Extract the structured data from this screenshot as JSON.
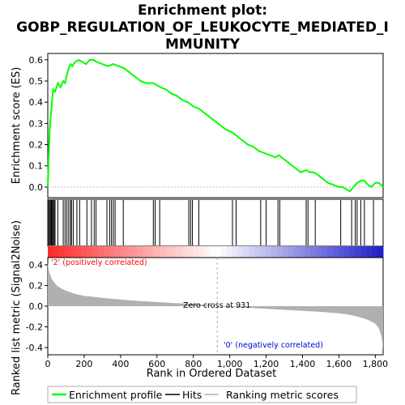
{
  "title_lines": [
    "Enrichment plot:",
    "GOBP_REGULATION_OF_LEUKOCYTE_MEDIATED_I",
    "MMUNITY"
  ],
  "colors": {
    "es_line": "#00ff00",
    "hits": "#000000",
    "metric_fill": "#b0b0b0",
    "pos_label": "#ff0000",
    "neg_label": "#0000cc"
  },
  "chart_data": [
    {
      "type": "line",
      "name": "enrichment-score",
      "ylabel": "Enrichment score (ES)",
      "ylim": [
        -0.05,
        0.63
      ],
      "yticks": [
        0.0,
        0.1,
        0.2,
        0.3,
        0.4,
        0.5,
        0.6
      ],
      "xlim": [
        0,
        1843
      ],
      "grid": false,
      "series": [
        {
          "name": "Enrichment profile",
          "x": [
            0,
            5,
            10,
            15,
            20,
            25,
            30,
            40,
            55,
            70,
            85,
            95,
            105,
            115,
            125,
            135,
            150,
            170,
            190,
            210,
            230,
            250,
            270,
            300,
            330,
            360,
            390,
            420,
            450,
            480,
            510,
            540,
            580,
            600,
            620,
            650,
            680,
            710,
            740,
            770,
            800,
            830,
            860,
            890,
            920,
            950,
            980,
            1010,
            1040,
            1070,
            1100,
            1130,
            1160,
            1190,
            1220,
            1250,
            1270,
            1300,
            1330,
            1360,
            1390,
            1420,
            1440,
            1460,
            1480,
            1510,
            1540,
            1570,
            1600,
            1620,
            1640,
            1660,
            1680,
            1700,
            1720,
            1740,
            1760,
            1780,
            1800,
            1820,
            1843
          ],
          "y": [
            0.0,
            0.14,
            0.26,
            0.32,
            0.37,
            0.42,
            0.46,
            0.45,
            0.49,
            0.47,
            0.5,
            0.49,
            0.53,
            0.56,
            0.58,
            0.57,
            0.59,
            0.6,
            0.59,
            0.58,
            0.6,
            0.6,
            0.59,
            0.58,
            0.57,
            0.58,
            0.57,
            0.56,
            0.54,
            0.52,
            0.5,
            0.49,
            0.49,
            0.48,
            0.47,
            0.46,
            0.44,
            0.43,
            0.41,
            0.4,
            0.38,
            0.37,
            0.35,
            0.33,
            0.31,
            0.29,
            0.27,
            0.26,
            0.24,
            0.22,
            0.2,
            0.19,
            0.17,
            0.16,
            0.15,
            0.14,
            0.15,
            0.13,
            0.11,
            0.09,
            0.07,
            0.08,
            0.07,
            0.07,
            0.06,
            0.04,
            0.02,
            0.01,
            0.0,
            0.0,
            -0.01,
            -0.02,
            0.0,
            0.02,
            0.03,
            0.03,
            0.01,
            0.0,
            0.02,
            0.02,
            0.0
          ]
        }
      ]
    },
    {
      "type": "scatter",
      "name": "hits",
      "xlim": [
        0,
        1843
      ],
      "series": [
        {
          "name": "Hits",
          "x": [
            5,
            10,
            15,
            20,
            25,
            30,
            35,
            40,
            55,
            85,
            95,
            105,
            115,
            125,
            130,
            140,
            160,
            175,
            215,
            240,
            255,
            265,
            325,
            340,
            350,
            360,
            370,
            415,
            580,
            590,
            615,
            775,
            785,
            795,
            830,
            1015,
            1035,
            1170,
            1200,
            1265,
            1275,
            1420,
            1430,
            1470,
            1610,
            1670,
            1690,
            1700,
            1720,
            1740,
            1790
          ]
        }
      ]
    },
    {
      "type": "area",
      "name": "ranked-metric",
      "ylabel": "Ranked list metric (Signal2Noise)",
      "xlabel": "Rank in Ordered Dataset",
      "ylim": [
        -0.47,
        0.47
      ],
      "yticks": [
        -0.4,
        -0.2,
        0.0,
        0.2,
        0.4
      ],
      "xlim": [
        0,
        1843
      ],
      "xticks": [
        0,
        200,
        400,
        600,
        800,
        1000,
        1200,
        1400,
        1600,
        1800
      ],
      "xtick_labels": [
        "0",
        "200",
        "400",
        "600",
        "800",
        "1,000",
        "1,200",
        "1,400",
        "1,600",
        "1,800"
      ],
      "zero_cross": 931,
      "series": [
        {
          "name": "Ranking metric scores",
          "x": [
            0,
            5,
            10,
            20,
            30,
            50,
            75,
            100,
            150,
            200,
            300,
            400,
            500,
            600,
            700,
            800,
            900,
            931,
            1000,
            1100,
            1200,
            1300,
            1400,
            1500,
            1600,
            1650,
            1700,
            1750,
            1780,
            1800,
            1815,
            1825,
            1835,
            1843
          ],
          "y": [
            0.42,
            0.36,
            0.32,
            0.27,
            0.24,
            0.2,
            0.17,
            0.15,
            0.12,
            0.1,
            0.08,
            0.065,
            0.05,
            0.04,
            0.03,
            0.02,
            0.008,
            0.0,
            -0.008,
            -0.015,
            -0.025,
            -0.035,
            -0.045,
            -0.055,
            -0.07,
            -0.08,
            -0.1,
            -0.125,
            -0.15,
            -0.17,
            -0.2,
            -0.24,
            -0.3,
            -0.42
          ]
        }
      ]
    }
  ],
  "annotations": {
    "pos_label": "'2' (positively correlated)",
    "neg_label": "'0' (negatively correlated)",
    "zero_cross_label": "Zero cross at 931"
  },
  "legend": {
    "placement": "bottom",
    "items": [
      {
        "label": "Enrichment profile",
        "color": "#00ff00"
      },
      {
        "label": "Hits",
        "color": "#000000"
      },
      {
        "label": "Ranking metric scores",
        "color": "#b0b0b0"
      }
    ]
  }
}
